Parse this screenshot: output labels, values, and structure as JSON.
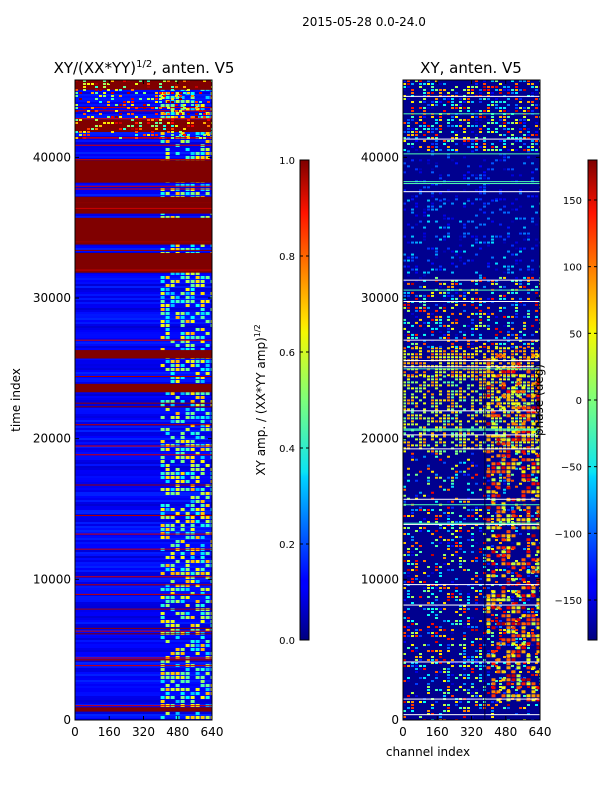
{
  "figure_title": "2015-05-28 0.0-24.0",
  "chart_data": [
    {
      "type": "heatmap",
      "title_text": "XY/(XX*YY)",
      "title_exp": "1/2",
      "title_suffix": ", anten. V5",
      "xlabel": "",
      "ylabel": "time index",
      "xlim": [
        0,
        640
      ],
      "ylim": [
        0,
        45500
      ],
      "xticks": [
        0,
        160,
        320,
        480,
        640
      ],
      "yticks": [
        0,
        10000,
        20000,
        30000,
        40000
      ],
      "colorbar": {
        "label_text": "XY amp. / (XX*YY amp)",
        "label_exp": "1/2",
        "range": [
          0.0,
          1.0
        ],
        "ticks": [
          "0.0",
          "0.2",
          "0.4",
          "0.6",
          "0.8",
          "1.0"
        ],
        "colormap": "jet"
      },
      "bright_channel_range": [
        400,
        640
      ],
      "saturated_time_bands": [
        [
          25700,
          26300
        ],
        [
          31800,
          33200
        ],
        [
          33800,
          35700
        ],
        [
          36000,
          37200
        ],
        [
          38200,
          39800
        ],
        [
          41800,
          42700
        ],
        [
          44800,
          45500
        ],
        [
          23300,
          23900
        ],
        [
          600,
          900
        ]
      ]
    },
    {
      "type": "heatmap",
      "title_text": "XY, anten. V5",
      "xlabel": "channel index",
      "ylabel": "",
      "xlim": [
        0,
        640
      ],
      "ylim": [
        0,
        45500
      ],
      "xticks": [
        0,
        160,
        320,
        480,
        640
      ],
      "yticks": [
        0,
        10000,
        20000,
        30000,
        40000
      ],
      "colorbar": {
        "label_text": "phase (deg)",
        "range": [
          -180,
          180
        ],
        "ticks": [
          "-150",
          "-100",
          "-50",
          "0",
          "50",
          "100",
          "150"
        ],
        "colormap": "jet"
      },
      "bright_channel_range": [
        390,
        640
      ]
    }
  ]
}
